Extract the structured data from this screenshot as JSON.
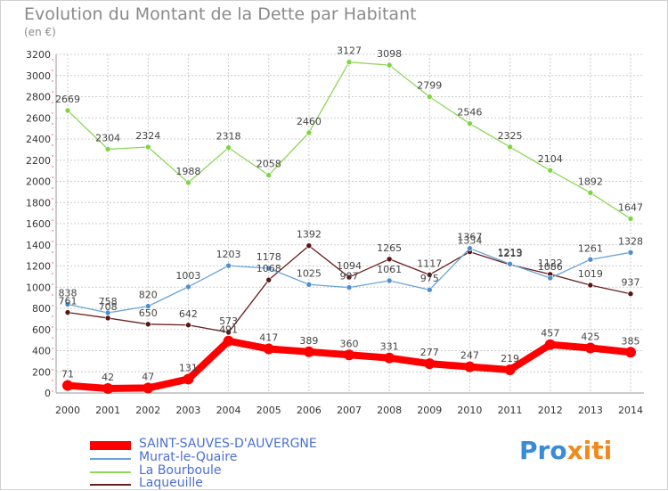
{
  "title": "Evolution du Montant de la Dette par Habitant",
  "unit": "(en €)",
  "logo": {
    "text_a": "Pro",
    "text_b": "x",
    "text_c": "iti"
  },
  "colors": {
    "saint": "#ff0000",
    "murat": "#6aa3d6",
    "bourboule": "#8fd659",
    "laqueuille": "#6b1f1f",
    "grid": "#cccccc",
    "axis_text": "#333333"
  },
  "chart_data": {
    "type": "line",
    "title": "Evolution du Montant de la Dette par Habitant",
    "ylabel": "(en €)",
    "xlabel": "",
    "ylim": [
      0,
      3200
    ],
    "yticks": [
      0,
      200,
      400,
      600,
      800,
      1000,
      1200,
      1400,
      1600,
      1800,
      2000,
      2200,
      2400,
      2600,
      2800,
      3000,
      3200
    ],
    "categories": [
      "2000",
      "2001",
      "2002",
      "2003",
      "2004",
      "2005",
      "2006",
      "2007",
      "2008",
      "2009",
      "2010",
      "2011",
      "2012",
      "2013",
      "2014"
    ],
    "series": [
      {
        "key": "saint",
        "name": "SAINT-SAUVES-D'AUVERGNE",
        "values": [
          71,
          42,
          47,
          131,
          491,
          417,
          389,
          360,
          331,
          277,
          247,
          219,
          457,
          425,
          385
        ]
      },
      {
        "key": "murat",
        "name": "Murat-le-Quaire",
        "values": [
          838,
          758,
          820,
          1003,
          1203,
          1178,
          1025,
          997,
          1061,
          975,
          1367,
          1219,
          1086,
          1261,
          1328
        ]
      },
      {
        "key": "bourboule",
        "name": "La Bourboule",
        "values": [
          2669,
          2304,
          2324,
          1988,
          2318,
          2058,
          2460,
          3127,
          3098,
          2799,
          2546,
          2325,
          2104,
          1892,
          1647
        ]
      },
      {
        "key": "laqueuille",
        "name": "Laqueuille",
        "values": [
          761,
          708,
          650,
          642,
          573,
          1068,
          1392,
          1094,
          1265,
          1117,
          1334,
          1213,
          1122,
          1019,
          937
        ]
      }
    ]
  }
}
